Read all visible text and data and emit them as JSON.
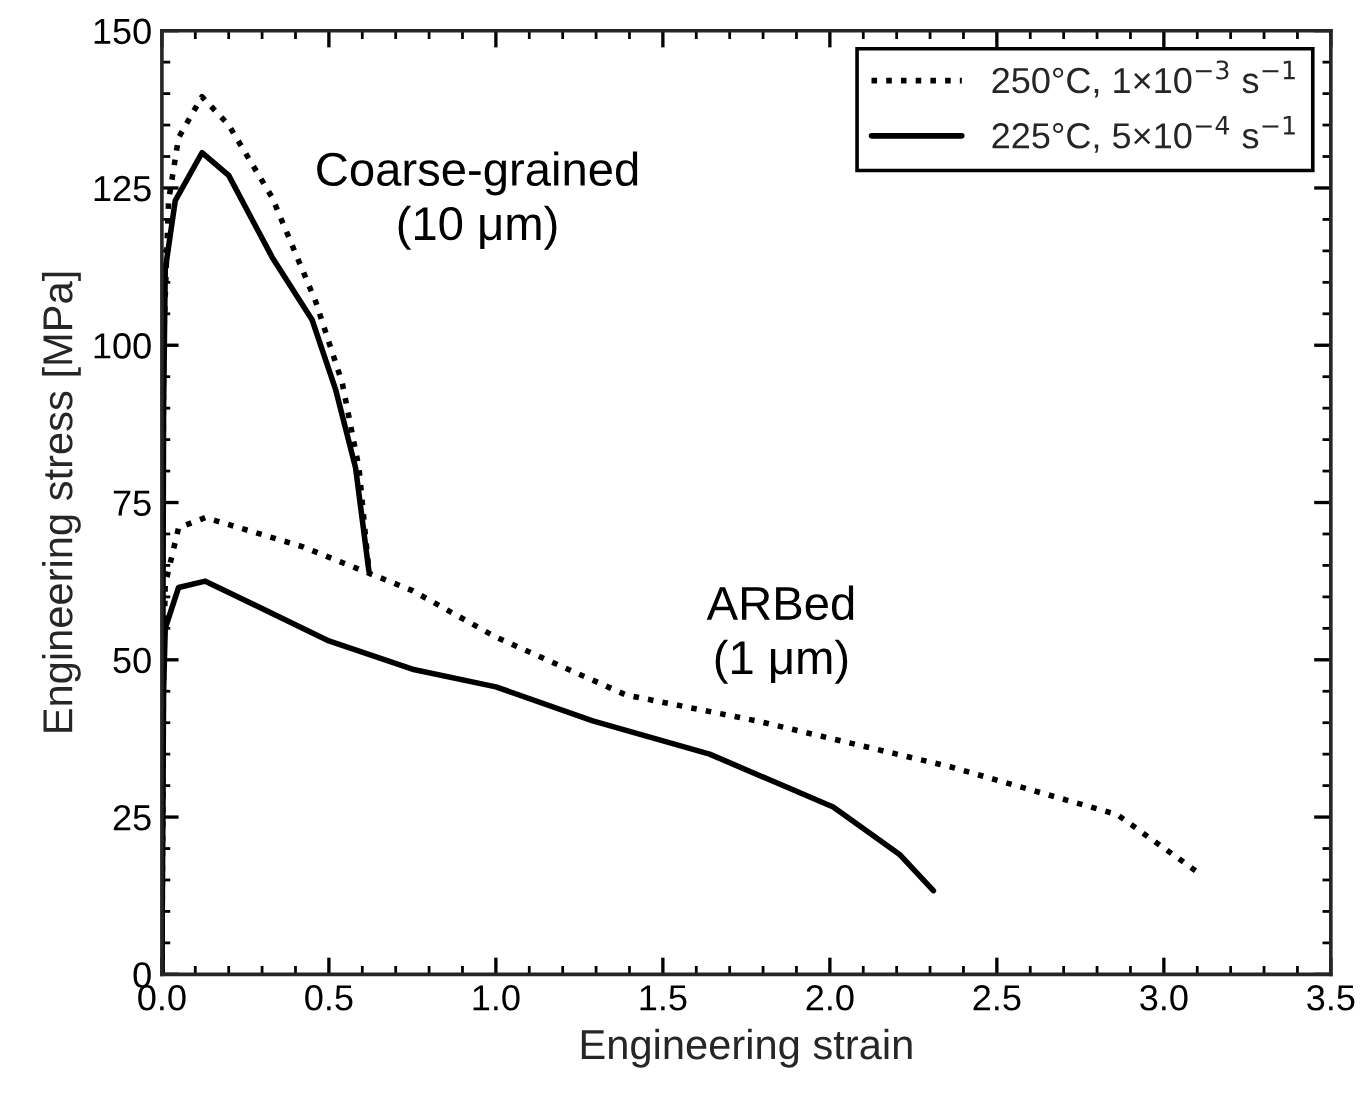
{
  "chart_data": {
    "type": "line",
    "xlabel": "Engineering strain",
    "ylabel": "Engineering stress [MPa]",
    "xlim": [
      0,
      3.5
    ],
    "xticks": [
      {
        "value": 0,
        "label": "0.0"
      },
      0.5,
      {
        "value": 1,
        "label": "1.0"
      },
      1.5,
      {
        "value": 2,
        "label": "2.0"
      },
      2.5,
      {
        "value": 3,
        "label": "3.0"
      },
      3.5
    ],
    "ylim": [
      0,
      150
    ],
    "yticks": [
      0,
      25,
      50,
      75,
      100,
      125,
      150
    ],
    "grid": false,
    "legend": "top right",
    "annotations": [
      "Coarse-grained\n(10 μm)",
      "ARBed\n(1 μm)"
    ],
    "series": [
      {
        "name": "250°C, 1×10$^{−3}$ s$^{−1}$",
        "color": "#000000",
        "line_style": "dotted",
        "x": [
          0,
          0.005,
          0.02,
          0.05,
          0.12,
          0.2,
          0.33,
          0.46,
          0.54,
          0.59,
          0.62
        ],
        "values": [
          0,
          100,
          123,
          133,
          139.5,
          135,
          123.5,
          107,
          94,
          80.5,
          64
        ]
      },
      {
        "name": "225°C, 5×10$^{−4}$ s$^{−1}$",
        "color": "#000000",
        "line_style": "solid",
        "x": [
          0,
          0.005,
          0.01,
          0.04,
          0.12,
          0.2,
          0.33,
          0.45,
          0.52,
          0.58,
          0.62
        ],
        "values": [
          0,
          90,
          112,
          123,
          130.6,
          127,
          114,
          104,
          93,
          80.5,
          64
        ]
      },
      {
        "color": "#000000",
        "line_style": "dotted",
        "x": [
          0,
          0.005,
          0.01,
          0.05,
          0.13,
          0.42,
          0.75,
          1.0,
          1.39,
          1.78,
          2.36,
          2.86,
          3.11
        ],
        "values": [
          0,
          50,
          62,
          71,
          72.6,
          68,
          61,
          53.6,
          44.4,
          40.3,
          33,
          25.4,
          15.9
        ]
      },
      {
        "color": "#000000",
        "line_style": "solid",
        "x": [
          0,
          0.005,
          0.01,
          0.05,
          0.13,
          0.5,
          0.75,
          1.0,
          1.29,
          1.64,
          2.01,
          2.21,
          2.31
        ],
        "values": [
          0,
          45,
          55,
          61.5,
          62.5,
          53,
          48.5,
          45.7,
          40.3,
          35,
          26.6,
          19,
          13.3
        ]
      }
    ]
  }
}
